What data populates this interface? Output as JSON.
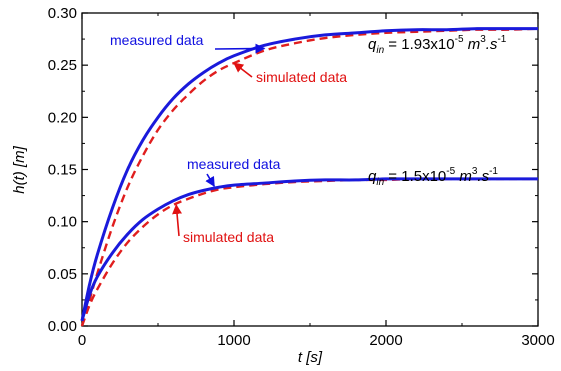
{
  "chart_data": {
    "type": "line",
    "xlabel": "t [s]",
    "ylabel": "h(t) [m]",
    "xlim": [
      0,
      3000
    ],
    "ylim": [
      0,
      0.3
    ],
    "x_ticks": [
      "0",
      "1000",
      "2000",
      "3000"
    ],
    "y_ticks": [
      "0.00",
      "0.05",
      "0.10",
      "0.15",
      "0.20",
      "0.25",
      "0.30"
    ],
    "grid": false,
    "series": [
      {
        "name": "measured data",
        "case": "qin = 1.93x10-5",
        "color": "#1a1adb",
        "style": "solid",
        "x": [
          0,
          50,
          100,
          200,
          300,
          400,
          500,
          600,
          700,
          800,
          900,
          1000,
          1200,
          1400,
          1600,
          1800,
          2000,
          2200,
          2400,
          2600,
          2800,
          3000
        ],
        "y": [
          0.005,
          0.04,
          0.068,
          0.113,
          0.15,
          0.178,
          0.2,
          0.218,
          0.232,
          0.243,
          0.252,
          0.259,
          0.269,
          0.275,
          0.279,
          0.281,
          0.283,
          0.284,
          0.284,
          0.285,
          0.285,
          0.285
        ]
      },
      {
        "name": "simulated data",
        "case": "qin = 1.93x10-5",
        "color": "#e01e1e",
        "style": "dashed",
        "x": [
          0,
          50,
          100,
          200,
          300,
          400,
          500,
          600,
          700,
          800,
          900,
          1000,
          1200,
          1400,
          1600,
          1800,
          2000,
          2200,
          2400,
          2600,
          2800,
          3000
        ],
        "y": [
          0.0,
          0.025,
          0.05,
          0.095,
          0.133,
          0.163,
          0.188,
          0.207,
          0.222,
          0.235,
          0.245,
          0.252,
          0.264,
          0.271,
          0.276,
          0.279,
          0.281,
          0.282,
          0.283,
          0.284,
          0.284,
          0.285
        ]
      },
      {
        "name": "measured data",
        "case": "qin = 1.5x10-5",
        "color": "#1a1adb",
        "style": "solid",
        "x": [
          0,
          50,
          100,
          200,
          300,
          400,
          500,
          600,
          700,
          800,
          900,
          1000,
          1200,
          1400,
          1600,
          1800,
          2000,
          2200,
          2400,
          2600,
          2800,
          3000
        ],
        "y": [
          0.005,
          0.03,
          0.047,
          0.07,
          0.088,
          0.102,
          0.112,
          0.12,
          0.126,
          0.13,
          0.133,
          0.135,
          0.137,
          0.139,
          0.14,
          0.14,
          0.141,
          0.141,
          0.141,
          0.141,
          0.141,
          0.141
        ]
      },
      {
        "name": "simulated data",
        "case": "qin = 1.5x10-5",
        "color": "#e01e1e",
        "style": "dashed",
        "x": [
          0,
          50,
          100,
          200,
          300,
          400,
          500,
          600,
          700,
          800,
          900,
          1000,
          1200,
          1400,
          1600,
          1800,
          2000,
          2200,
          2400,
          2600,
          2800,
          3000
        ],
        "y": [
          0.0,
          0.02,
          0.035,
          0.06,
          0.08,
          0.095,
          0.107,
          0.116,
          0.122,
          0.127,
          0.131,
          0.133,
          0.136,
          0.138,
          0.139,
          0.14,
          0.14,
          0.141,
          0.141,
          0.141,
          0.141,
          0.141
        ]
      }
    ],
    "annotations": [
      {
        "text": "measured data",
        "color": "#1010e0",
        "target": {
          "x": 1200,
          "y": 0.266
        }
      },
      {
        "text": "simulated data",
        "color": "#e01010",
        "target": {
          "x": 1000,
          "y": 0.252
        }
      },
      {
        "text": "measured data",
        "color": "#1010e0",
        "target": {
          "x": 870,
          "y": 0.134
        }
      },
      {
        "text": "simulated data",
        "color": "#e01010",
        "target": {
          "x": 620,
          "y": 0.116
        }
      }
    ],
    "formulas": [
      {
        "q": "q",
        "sub": "in",
        "rest": " = 1.93x10",
        "exp": "-5",
        "unit_m": " m",
        "unit_exp": "3",
        "unit_s": ".s",
        "unit_s_exp": "-1"
      },
      {
        "q": "q",
        "sub": "in",
        "rest": " = 1.5x10",
        "exp": "-5",
        "unit_m": " m",
        "unit_exp": "3",
        "unit_s": ".s",
        "unit_s_exp": "-1"
      }
    ]
  }
}
